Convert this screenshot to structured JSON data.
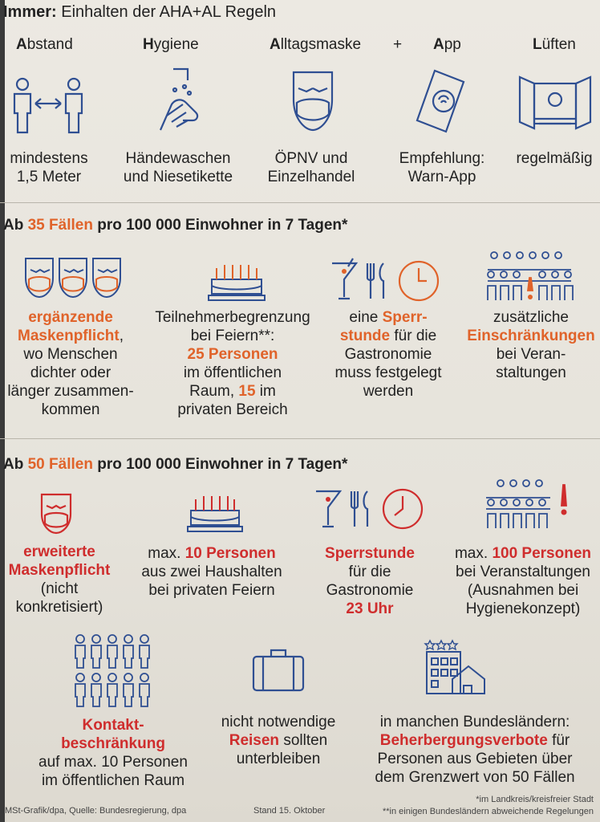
{
  "title_bold": "Immer:",
  "title_rest": " Einhalten der AHA+AL Regeln",
  "aha": [
    {
      "letter": "A",
      "rest": "bstand",
      "desc1": "mindestens",
      "desc2": "1,5 Meter"
    },
    {
      "letter": "H",
      "rest": "ygiene",
      "desc1": "Händewaschen",
      "desc2": "und Niesetikette"
    },
    {
      "letter": "A",
      "rest": "lltagsmaske",
      "desc1": "ÖPNV und",
      "desc2": "Einzelhandel"
    },
    {
      "letter": "A",
      "rest": "pp",
      "desc1": "Empfehlung:",
      "desc2": "Warn-App"
    },
    {
      "letter": "L",
      "rest": "üften",
      "desc1": "regelmäßig",
      "desc2": ""
    }
  ],
  "plus": "+",
  "sec35": {
    "pre": "Ab ",
    "num": "35 Fällen",
    "post": " pro 100 000 Einwohner in 7 Tagen*"
  },
  "s35a": {
    "l1": "ergänzende",
    "l2": "Maskenpflicht",
    "l2b": ",",
    "l3": "wo Menschen",
    "l4": "dichter oder",
    "l5": "länger zusammen-",
    "l6": "kommen"
  },
  "s35b": {
    "l1": "Teilnehmerbegrenzung",
    "l2": "bei Feiern**:",
    "l3": "25 Personen",
    "l4": "im öffentlichen",
    "l5a": "Raum, ",
    "l5b": "15",
    "l5c": " im",
    "l6": "privaten Bereich"
  },
  "s35c": {
    "l1a": "eine ",
    "l1b": "Sperr-",
    "l2a": "stunde",
    "l2b": " für die",
    "l3": "Gastronomie",
    "l4": "muss festgelegt",
    "l5": "werden"
  },
  "s35d": {
    "l1": "zusätzliche",
    "l2": "Einschränkungen",
    "l3": "bei Veran-",
    "l4": "staltungen"
  },
  "sec50": {
    "pre": "Ab ",
    "num": "50 Fällen",
    "post": " pro 100 000 Einwohner in 7 Tagen*"
  },
  "s50a": {
    "l1": "erweiterte",
    "l2": "Maskenpflicht",
    "l3": "(nicht",
    "l4": "konkretisiert)"
  },
  "s50b": {
    "l1a": "max. ",
    "l1b": "10 Personen",
    "l2": "aus zwei Haushalten",
    "l3": "bei privaten Feiern"
  },
  "s50c": {
    "l1": "Sperrstunde",
    "l2": "für die",
    "l3": "Gastronomie",
    "l4": "23 Uhr"
  },
  "s50d": {
    "l1a": "max. ",
    "l1b": "100 Personen",
    "l2": "bei Veranstaltungen",
    "l3": "(Ausnahmen bei",
    "l4": "Hygienekonzept)"
  },
  "s50e": {
    "l1": "Kontakt-",
    "l2": "beschränkung",
    "l3": "auf max. 10 Personen",
    "l4": "im öffentlichen Raum"
  },
  "s50f": {
    "l1": "nicht notwendige",
    "l2a": "Reisen",
    "l2b": " sollten",
    "l3": "unterbleiben"
  },
  "s50g": {
    "l1": "in manchen Bundesländern:",
    "l2a": "Beherbergungsverbote",
    "l2b": " für",
    "l3": "Personen aus Gebieten über",
    "l4": "dem Grenzwert von 50 Fällen"
  },
  "footer": {
    "source": "MSt-Grafik/dpa, Quelle: Bundesregierung, dpa",
    "date": "Stand 15. Oktober",
    "note1": "*im Landkreis/kreisfreier Stadt",
    "note2": "**in einigen Bundesländern abweichende Regelungen"
  },
  "colors": {
    "orange": "#e0632a",
    "red": "#cf2d2d",
    "blue": "#2f4f92"
  }
}
